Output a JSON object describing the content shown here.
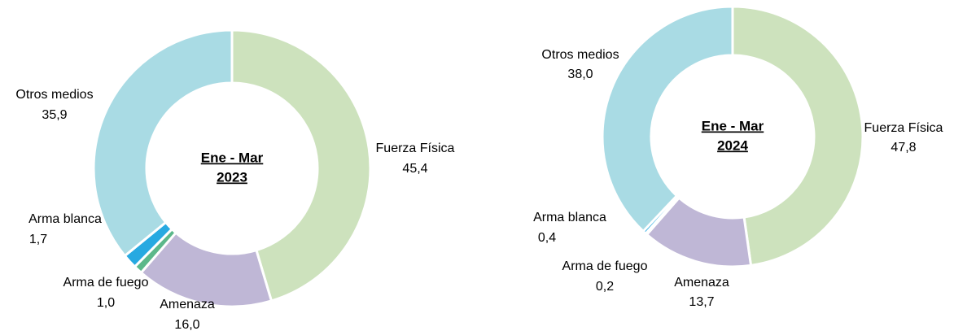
{
  "chart_data": [
    {
      "type": "donut",
      "title": [
        "Ene - Mar",
        "2023"
      ],
      "categories": [
        "Fuerza Física",
        "Amenaza",
        "Arma de fuego",
        "Arma blanca",
        "Otros medios"
      ],
      "values": [
        45.4,
        16.0,
        1.0,
        1.7,
        35.9
      ],
      "value_labels": [
        "45,4",
        "16,0",
        "1,0",
        "1,7",
        "35,9"
      ],
      "colors": [
        "#cde2bd",
        "#bfb7d6",
        "#5cb88a",
        "#27a9e1",
        "#a9dbe4"
      ]
    },
    {
      "type": "donut",
      "title": [
        "Ene - Mar",
        "2024"
      ],
      "categories": [
        "Fuerza Física",
        "Amenaza",
        "Arma de fuego",
        "Arma blanca",
        "Otros medios"
      ],
      "values": [
        47.8,
        13.7,
        0.2,
        0.4,
        38.0
      ],
      "value_labels": [
        "47,8",
        "13,7",
        "0,2",
        "0,4",
        "38,0"
      ],
      "colors": [
        "#cde2bd",
        "#bfb7d6",
        "#5cb88a",
        "#27a9e1",
        "#a9dbe4"
      ]
    }
  ]
}
